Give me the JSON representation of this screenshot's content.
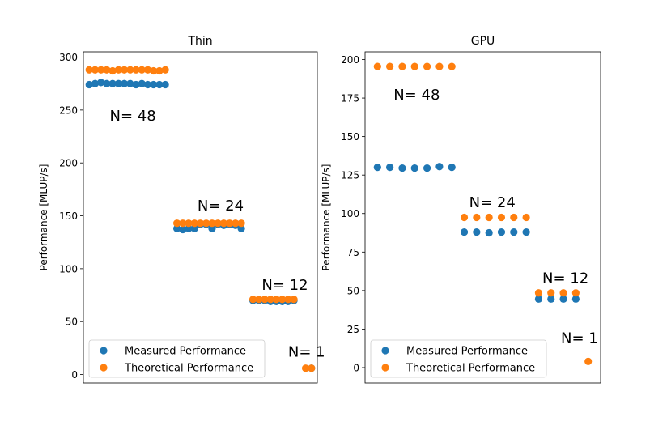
{
  "chart_data": [
    {
      "type": "scatter",
      "title": "Thin",
      "xlabel": "",
      "ylabel": "Performance [MLUP/s]",
      "ylim": [
        -8,
        305
      ],
      "yticks": [
        0,
        50,
        100,
        150,
        200,
        250,
        300
      ],
      "grid": false,
      "legend_position": "lower-left",
      "series": [
        {
          "name": "Measured Performance",
          "color": "#1f77b4",
          "points": [
            {
              "x": 1,
              "y": 274
            },
            {
              "x": 2,
              "y": 275
            },
            {
              "x": 3,
              "y": 276
            },
            {
              "x": 4,
              "y": 275
            },
            {
              "x": 5,
              "y": 275
            },
            {
              "x": 6,
              "y": 275
            },
            {
              "x": 7,
              "y": 275
            },
            {
              "x": 8,
              "y": 275
            },
            {
              "x": 9,
              "y": 274
            },
            {
              "x": 10,
              "y": 275
            },
            {
              "x": 11,
              "y": 274
            },
            {
              "x": 12,
              "y": 274
            },
            {
              "x": 13,
              "y": 274
            },
            {
              "x": 14,
              "y": 274
            },
            {
              "x": 16,
              "y": 138
            },
            {
              "x": 17,
              "y": 137
            },
            {
              "x": 18,
              "y": 138
            },
            {
              "x": 19,
              "y": 138
            },
            {
              "x": 20,
              "y": 142
            },
            {
              "x": 21,
              "y": 142
            },
            {
              "x": 22,
              "y": 138
            },
            {
              "x": 23,
              "y": 142
            },
            {
              "x": 24,
              "y": 141
            },
            {
              "x": 25,
              "y": 142
            },
            {
              "x": 26,
              "y": 141
            },
            {
              "x": 27,
              "y": 138
            },
            {
              "x": 29,
              "y": 70
            },
            {
              "x": 30,
              "y": 70
            },
            {
              "x": 31,
              "y": 70
            },
            {
              "x": 32,
              "y": 69
            },
            {
              "x": 33,
              "y": 69
            },
            {
              "x": 34,
              "y": 69
            },
            {
              "x": 35,
              "y": 69
            },
            {
              "x": 36,
              "y": 70
            },
            {
              "x": 39,
              "y": 6
            }
          ]
        },
        {
          "name": "Theoretical Performance",
          "color": "#ff7f0e",
          "points": [
            {
              "x": 1,
              "y": 288
            },
            {
              "x": 2,
              "y": 288
            },
            {
              "x": 3,
              "y": 288
            },
            {
              "x": 4,
              "y": 288
            },
            {
              "x": 5,
              "y": 287
            },
            {
              "x": 6,
              "y": 288
            },
            {
              "x": 7,
              "y": 288
            },
            {
              "x": 8,
              "y": 288
            },
            {
              "x": 9,
              "y": 288
            },
            {
              "x": 10,
              "y": 288
            },
            {
              "x": 11,
              "y": 288
            },
            {
              "x": 12,
              "y": 287
            },
            {
              "x": 13,
              "y": 287
            },
            {
              "x": 14,
              "y": 288
            },
            {
              "x": 16,
              "y": 143
            },
            {
              "x": 17,
              "y": 143
            },
            {
              "x": 18,
              "y": 143
            },
            {
              "x": 19,
              "y": 143
            },
            {
              "x": 20,
              "y": 143
            },
            {
              "x": 21,
              "y": 143
            },
            {
              "x": 22,
              "y": 143
            },
            {
              "x": 23,
              "y": 143
            },
            {
              "x": 24,
              "y": 143
            },
            {
              "x": 25,
              "y": 143
            },
            {
              "x": 26,
              "y": 143
            },
            {
              "x": 27,
              "y": 143
            },
            {
              "x": 29,
              "y": 71
            },
            {
              "x": 30,
              "y": 71
            },
            {
              "x": 31,
              "y": 71
            },
            {
              "x": 32,
              "y": 71
            },
            {
              "x": 33,
              "y": 71
            },
            {
              "x": 34,
              "y": 71
            },
            {
              "x": 35,
              "y": 71
            },
            {
              "x": 36,
              "y": 71
            },
            {
              "x": 38,
              "y": 6
            },
            {
              "x": 39,
              "y": 6
            }
          ]
        }
      ],
      "annotations": [
        {
          "text": "N= 48",
          "x": 4.5,
          "y": 240
        },
        {
          "text": "N= 24",
          "x": 19.5,
          "y": 155
        },
        {
          "text": "N= 12",
          "x": 30.5,
          "y": 80
        },
        {
          "text": "N= 1",
          "x": 35.0,
          "y": 17
        }
      ],
      "xlim": [
        0,
        40
      ]
    },
    {
      "type": "scatter",
      "title": "GPU",
      "xlabel": "",
      "ylabel": "Performance [MLUP/s]",
      "ylim": [
        -10,
        205
      ],
      "yticks": [
        0,
        25,
        50,
        75,
        100,
        125,
        150,
        175,
        200
      ],
      "grid": false,
      "legend_position": "lower-left",
      "series": [
        {
          "name": "Measured Performance",
          "color": "#1f77b4",
          "points": [
            {
              "x": 1,
              "y": 130
            },
            {
              "x": 2,
              "y": 130
            },
            {
              "x": 3,
              "y": 129.5
            },
            {
              "x": 4,
              "y": 129.5
            },
            {
              "x": 5,
              "y": 129.5
            },
            {
              "x": 6,
              "y": 130.5
            },
            {
              "x": 7,
              "y": 130
            },
            {
              "x": 8,
              "y": 88
            },
            {
              "x": 9,
              "y": 88
            },
            {
              "x": 10,
              "y": 87.5
            },
            {
              "x": 11,
              "y": 88
            },
            {
              "x": 12,
              "y": 88
            },
            {
              "x": 13,
              "y": 88
            },
            {
              "x": 14,
              "y": 44.5
            },
            {
              "x": 15,
              "y": 44.5
            },
            {
              "x": 16,
              "y": 44.5
            },
            {
              "x": 17,
              "y": 44.5
            }
          ]
        },
        {
          "name": "Theoretical Performance",
          "color": "#ff7f0e",
          "points": [
            {
              "x": 1,
              "y": 195.5
            },
            {
              "x": 2,
              "y": 195.5
            },
            {
              "x": 3,
              "y": 195.5
            },
            {
              "x": 4,
              "y": 195.5
            },
            {
              "x": 5,
              "y": 195.5
            },
            {
              "x": 6,
              "y": 195.5
            },
            {
              "x": 7,
              "y": 195.5
            },
            {
              "x": 8,
              "y": 97.5
            },
            {
              "x": 9,
              "y": 97.5
            },
            {
              "x": 10,
              "y": 97.5
            },
            {
              "x": 11,
              "y": 97.5
            },
            {
              "x": 12,
              "y": 97.5
            },
            {
              "x": 13,
              "y": 97.5
            },
            {
              "x": 14,
              "y": 48.5
            },
            {
              "x": 15,
              "y": 48.5
            },
            {
              "x": 16,
              "y": 48.5
            },
            {
              "x": 17,
              "y": 48.5
            },
            {
              "x": 18,
              "y": 4
            }
          ]
        }
      ],
      "annotations": [
        {
          "text": "N= 48",
          "x": 2.3,
          "y": 174
        },
        {
          "text": "N= 24",
          "x": 8.4,
          "y": 104
        },
        {
          "text": "N= 12",
          "x": 14.3,
          "y": 55
        },
        {
          "text": "N= 1",
          "x": 15.8,
          "y": 16
        }
      ],
      "xlim": [
        0,
        19
      ]
    }
  ]
}
